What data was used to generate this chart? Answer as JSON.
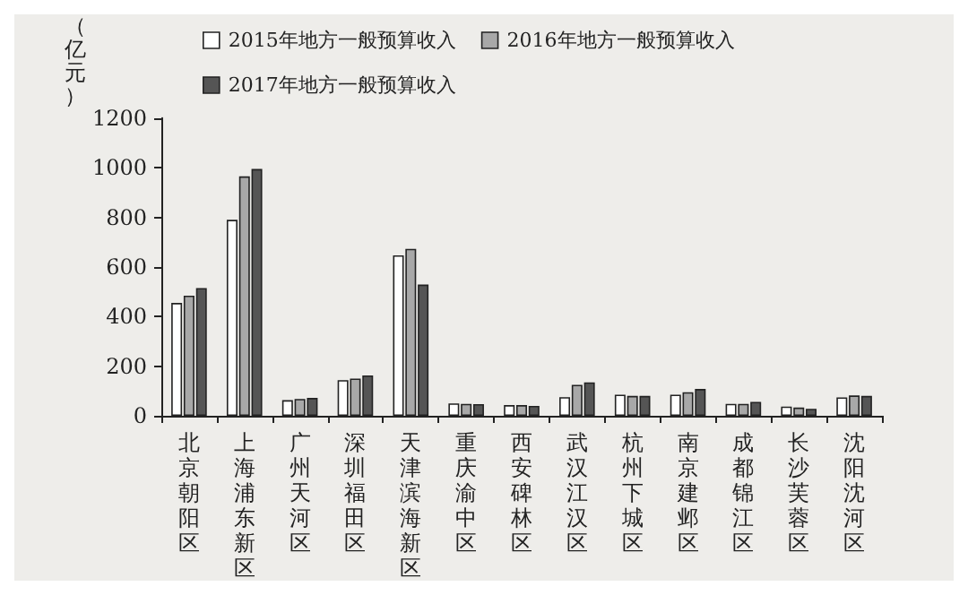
{
  "chart_data": {
    "type": "bar",
    "ylabel": "（亿元）",
    "categories": [
      "北京朝阳区",
      "上海浦东新区",
      "广州天河区",
      "深圳福田区",
      "天津滨海新区",
      "重庆渝中区",
      "西安碑林区",
      "武汉江汉区",
      "杭州下城区",
      "南京建邺区",
      "成都锦江区",
      "长沙芙蓉区",
      "沈阳沈河区"
    ],
    "series": [
      {
        "name": "2015年地方一般预算收入",
        "color": "#ffffff",
        "values": [
          455,
          790,
          63,
          144,
          647,
          50,
          43,
          75,
          85,
          85,
          48,
          37,
          74
        ]
      },
      {
        "name": "2016年地方一般预算收入",
        "color": "#a8a8a8",
        "values": [
          484,
          965,
          68,
          150,
          673,
          48,
          43,
          125,
          80,
          95,
          48,
          33,
          82
        ]
      },
      {
        "name": "2017年地方一般预算收入",
        "color": "#555555",
        "values": [
          515,
          995,
          72,
          163,
          529,
          47,
          40,
          135,
          80,
          108,
          56,
          28,
          80
        ]
      }
    ],
    "ylim": [
      0,
      1200
    ],
    "yticks": [
      0,
      200,
      400,
      600,
      800,
      1000,
      1200
    ],
    "grid": false,
    "legend": "top"
  }
}
